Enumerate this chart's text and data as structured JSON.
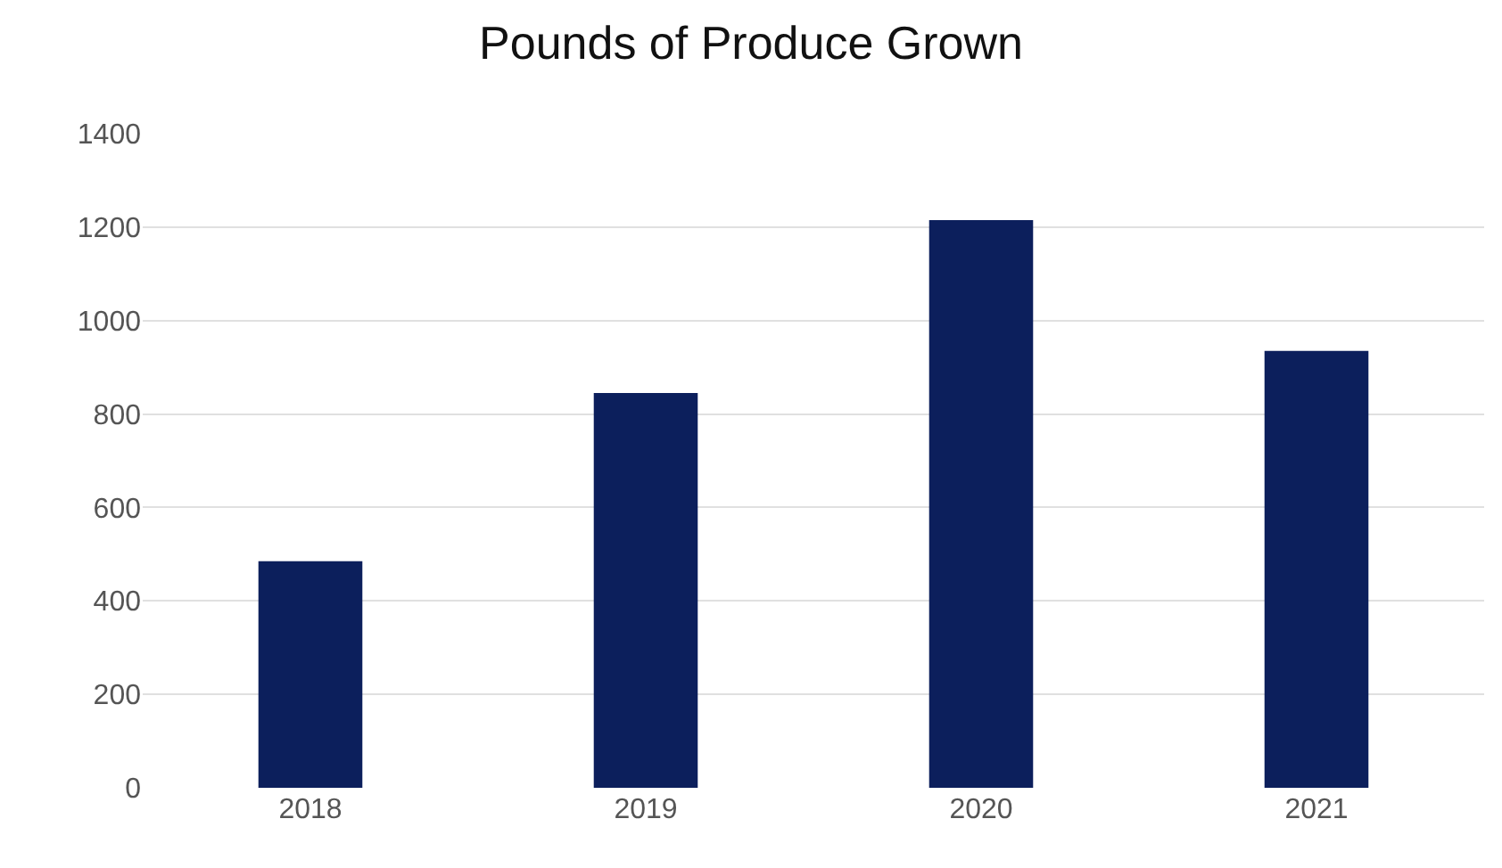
{
  "chart_data": {
    "type": "bar",
    "title": "Pounds of Produce Grown",
    "categories": [
      "2018",
      "2019",
      "2020",
      "2021"
    ],
    "values": [
      485,
      845,
      1215,
      935
    ],
    "color": "#0c1f5c",
    "ylim": [
      0,
      1400
    ],
    "yticks": [
      0,
      200,
      400,
      600,
      800,
      1000,
      1200,
      1400
    ],
    "grid": "y"
  }
}
